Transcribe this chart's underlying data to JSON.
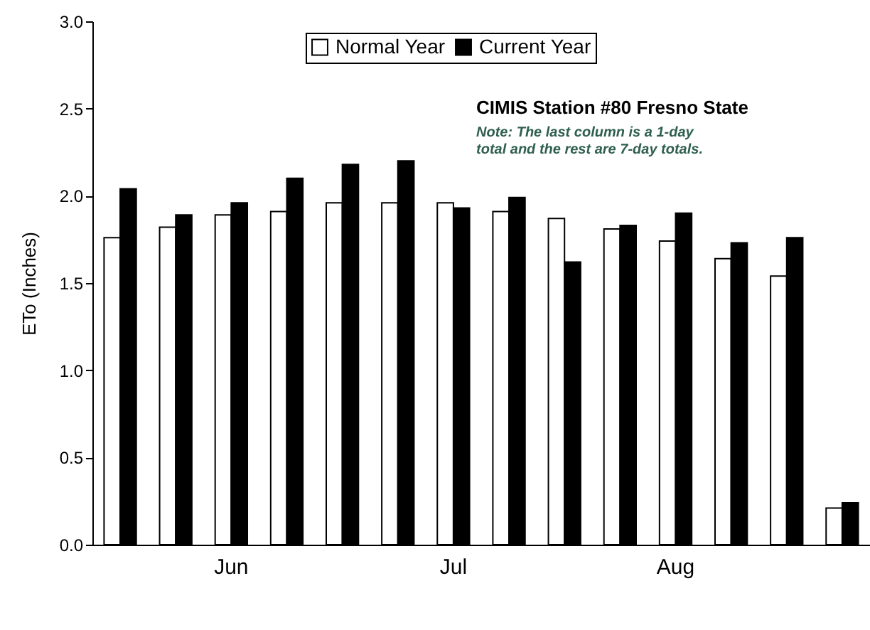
{
  "chart_data": {
    "type": "bar",
    "title": "CIMIS Station #80 Fresno State",
    "annotations": [
      "Note: The last column is a 1-day total and the rest are 7-day totals."
    ],
    "ylabel": "ETo (Inches)",
    "categories": [
      null,
      null,
      "Jun",
      null,
      null,
      null,
      "Jul",
      null,
      null,
      null,
      "Aug",
      null,
      null,
      null
    ],
    "series": [
      {
        "name": "Normal Year",
        "color": "#ffffff",
        "values": [
          1.76,
          1.82,
          1.89,
          1.91,
          1.96,
          1.96,
          1.96,
          1.91,
          1.87,
          1.81,
          1.74,
          1.64,
          1.54,
          0.21
        ]
      },
      {
        "name": "Current Year",
        "color": "#000000",
        "values": [
          2.04,
          1.89,
          1.96,
          2.1,
          2.18,
          2.2,
          1.93,
          1.99,
          1.62,
          1.83,
          1.9,
          1.73,
          1.76,
          0.24
        ]
      }
    ],
    "ylim": [
      0,
      3
    ],
    "yticks": [
      {
        "value": 0,
        "label": "0.0"
      },
      {
        "value": 0.5,
        "label": "0.5"
      },
      {
        "value": 1,
        "label": "1.0"
      },
      {
        "value": 1.5,
        "label": "1.5"
      },
      {
        "value": 2,
        "label": "2.0"
      },
      {
        "value": 2.5,
        "label": "2.5"
      },
      {
        "value": 3,
        "label": "3.0"
      }
    ],
    "grid": false,
    "legend": "top"
  }
}
